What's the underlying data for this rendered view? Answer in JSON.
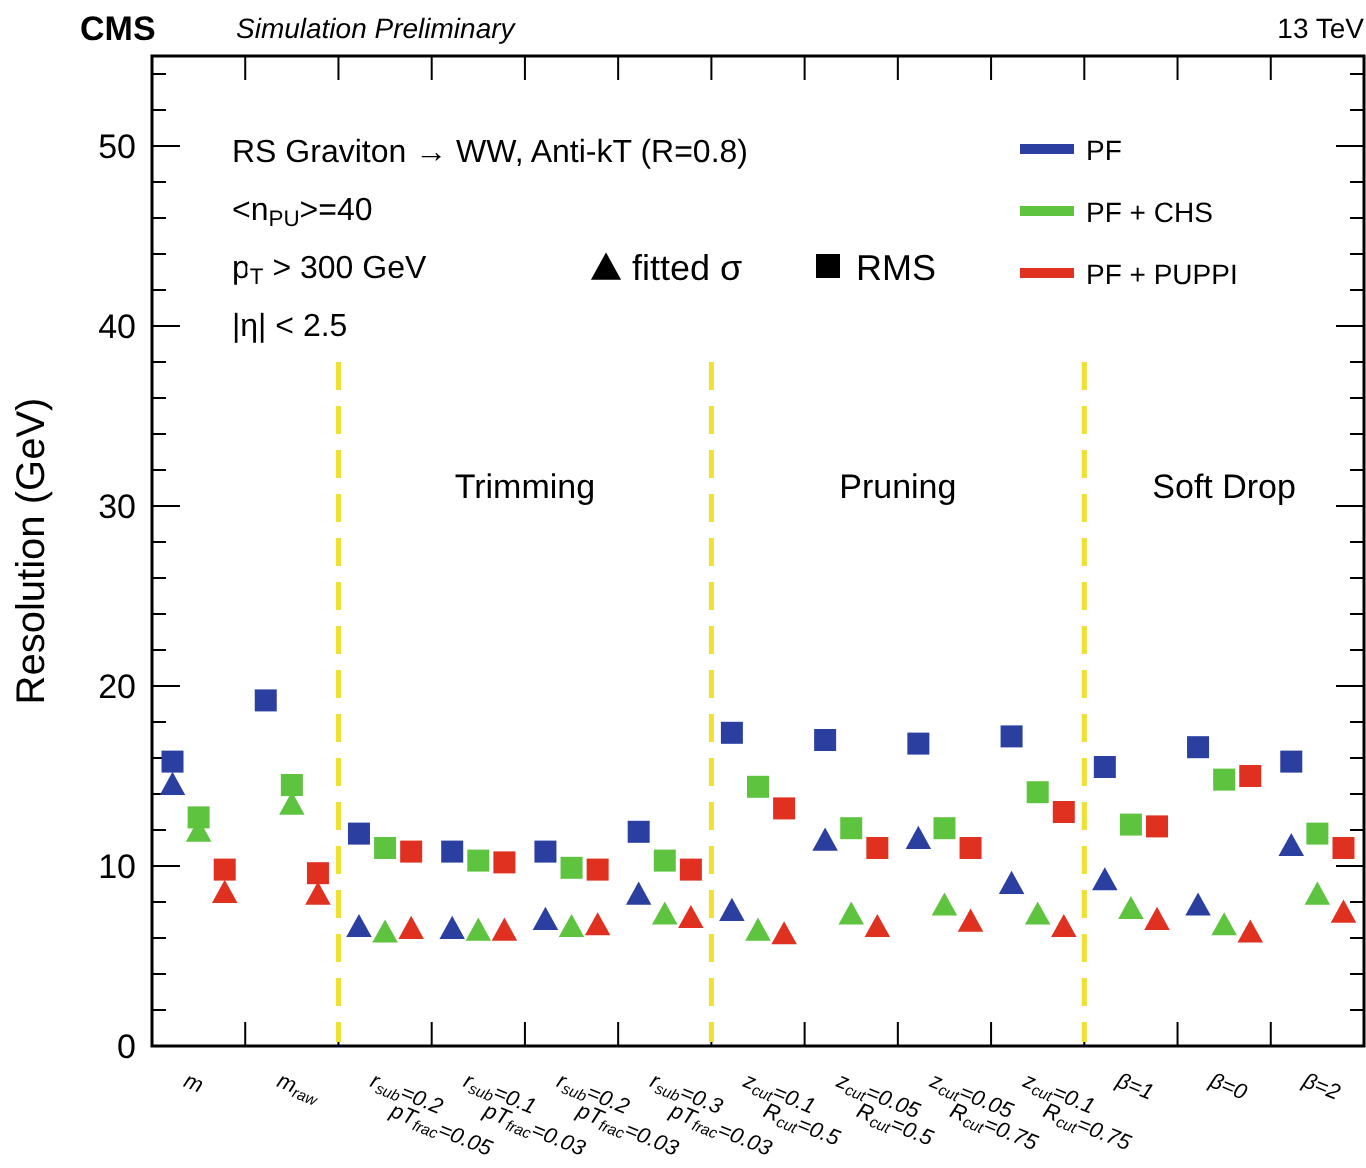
{
  "chart_data": {
    "type": "scatter",
    "title": "CMS",
    "subtitle": "Simulation Preliminary",
    "ylabel": "Resolution (GeV)",
    "categories": [
      "m",
      "m$_{raw}$",
      "r$_{sub}$=0.2 pT$_{frac}$=0.05",
      "r$_{sub}$=0.1 pT$_{frac}$=0.03",
      "r$_{sub}$=0.2 pT$_{frac}$=0.03",
      "r$_{sub}$=0.3 pT$_{frac}$=0.03",
      "z$_{cut}$=0.1 R$_{cut}$=0.5",
      "z$_{cut}$=0.05 R$_{cut}$=0.5",
      "z$_{cut}$=0.05 R$_{cut}$=0.75",
      "z$_{cut}$=0.1 R$_{cut}$=0.75",
      "β=1",
      "β=0",
      "β=2"
    ],
    "series": [
      {
        "name": "PF",
        "color": "#2b3fa0",
        "marker": "square",
        "values": [
          15.8,
          19.2,
          11.8,
          10.8,
          10.8,
          11.9,
          17.4,
          17.0,
          16.8,
          17.2,
          15.5,
          16.6,
          15.8
        ]
      },
      {
        "name": "PF + CHS",
        "color": "#5ec43f",
        "marker": "square",
        "values": [
          12.7,
          14.5,
          11.0,
          10.3,
          9.9,
          10.3,
          14.4,
          12.1,
          12.1,
          14.1,
          12.3,
          14.8,
          11.8
        ]
      },
      {
        "name": "PF + PUPPI",
        "color": "#e03020",
        "marker": "square",
        "values": [
          9.8,
          9.6,
          10.8,
          10.2,
          9.8,
          9.8,
          13.2,
          11.0,
          11.0,
          13.0,
          12.2,
          15.0,
          11.0
        ]
      },
      {
        "color": "#2b3fa0",
        "marker": "triangle",
        "values": [
          14.5,
          null,
          6.6,
          6.5,
          7.0,
          8.4,
          7.5,
          11.4,
          11.5,
          9.0,
          9.2,
          7.8,
          11.1
        ]
      },
      {
        "color": "#5ec43f",
        "marker": "triangle",
        "values": [
          11.9,
          13.4,
          6.3,
          6.4,
          6.6,
          7.3,
          6.4,
          7.3,
          7.8,
          7.3,
          7.6,
          6.7,
          8.4
        ]
      },
      {
        "color": "#e03020",
        "marker": "triangle",
        "values": [
          8.5,
          8.4,
          6.5,
          6.4,
          6.7,
          7.1,
          6.2,
          6.6,
          6.9,
          6.6,
          7.0,
          6.3,
          7.4
        ]
      }
    ],
    "ylim": [
      0,
      55
    ],
    "yticks": [
      0,
      {
        "value": 2,
        "label": null
      },
      {
        "value": 4,
        "label": null
      },
      {
        "value": 6,
        "label": null
      },
      {
        "value": 8,
        "label": null
      },
      10,
      {
        "value": 12,
        "label": null
      },
      {
        "value": 14,
        "label": null
      },
      {
        "value": 16,
        "label": null
      },
      {
        "value": 18,
        "label": null
      },
      20,
      {
        "value": 22,
        "label": null
      },
      {
        "value": 24,
        "label": null
      },
      {
        "value": 26,
        "label": null
      },
      {
        "value": 28,
        "label": null
      },
      30,
      {
        "value": 32,
        "label": null
      },
      {
        "value": 34,
        "label": null
      },
      {
        "value": 36,
        "label": null
      },
      {
        "value": 38,
        "label": null
      },
      40,
      {
        "value": 42,
        "label": null
      },
      {
        "value": 44,
        "label": null
      },
      {
        "value": 46,
        "label": null
      },
      {
        "value": 48,
        "label": null
      },
      50,
      {
        "value": 52,
        "label": null
      },
      {
        "value": 54,
        "label": null
      }
    ],
    "annotations": [
      "13 TeV",
      "RS Graviton → WW, Anti-kT (R=0.8)",
      "<n$_{PU}$>=40",
      "p$_{T}$ > 300 GeV",
      "|η| < 2.5",
      "fitted σ",
      "RMS",
      "Trimming",
      "Pruning",
      "Soft Drop"
    ],
    "legend": "top right"
  }
}
